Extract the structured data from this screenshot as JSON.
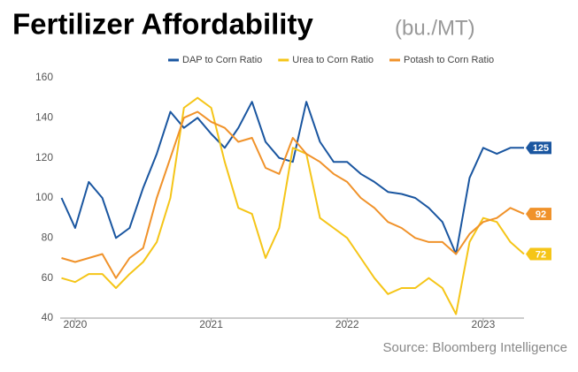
{
  "chart_data": {
    "type": "line",
    "title": "Fertilizer Affordability",
    "subtitle": "(bu./MT)",
    "source": "Source: Bloomberg Intelligence",
    "x": [
      2019.9,
      2020.0,
      2020.1,
      2020.2,
      2020.3,
      2020.4,
      2020.5,
      2020.6,
      2020.7,
      2020.8,
      2020.9,
      2021.0,
      2021.1,
      2021.2,
      2021.3,
      2021.4,
      2021.5,
      2021.6,
      2021.7,
      2021.8,
      2021.9,
      2022.0,
      2022.1,
      2022.2,
      2022.3,
      2022.4,
      2022.5,
      2022.6,
      2022.7,
      2022.8,
      2022.9,
      2023.0,
      2023.1,
      2023.2,
      2023.3
    ],
    "series": [
      {
        "name": "DAP to Corn Ratio",
        "color": "#1a56a0",
        "values": [
          100,
          85,
          108,
          100,
          80,
          85,
          105,
          122,
          143,
          135,
          140,
          132,
          125,
          135,
          148,
          128,
          120,
          118,
          148,
          128,
          118,
          118,
          112,
          108,
          103,
          102,
          100,
          95,
          88,
          72,
          110,
          125,
          122,
          125,
          125
        ]
      },
      {
        "name": "Urea to Corn Ratio",
        "color": "#f5c518",
        "values": [
          60,
          58,
          62,
          62,
          55,
          62,
          68,
          78,
          100,
          145,
          150,
          145,
          118,
          95,
          92,
          70,
          85,
          125,
          122,
          90,
          85,
          80,
          70,
          60,
          52,
          55,
          55,
          60,
          55,
          42,
          78,
          90,
          88,
          78,
          72
        ]
      },
      {
        "name": "Potash to Corn Ratio",
        "color": "#f0922a",
        "values": [
          70,
          68,
          70,
          72,
          60,
          70,
          75,
          100,
          120,
          140,
          143,
          138,
          135,
          128,
          130,
          115,
          112,
          130,
          122,
          118,
          112,
          108,
          100,
          95,
          88,
          85,
          80,
          78,
          78,
          72,
          82,
          88,
          90,
          95,
          92
        ]
      }
    ],
    "xlim": [
      2019.89,
      2023.3
    ],
    "xticks": [
      2020,
      2021,
      2022,
      2023
    ],
    "ylim": [
      40,
      160
    ],
    "yticks": [
      40,
      60,
      80,
      100,
      120,
      140,
      160
    ],
    "grid": false,
    "legend": "top"
  }
}
